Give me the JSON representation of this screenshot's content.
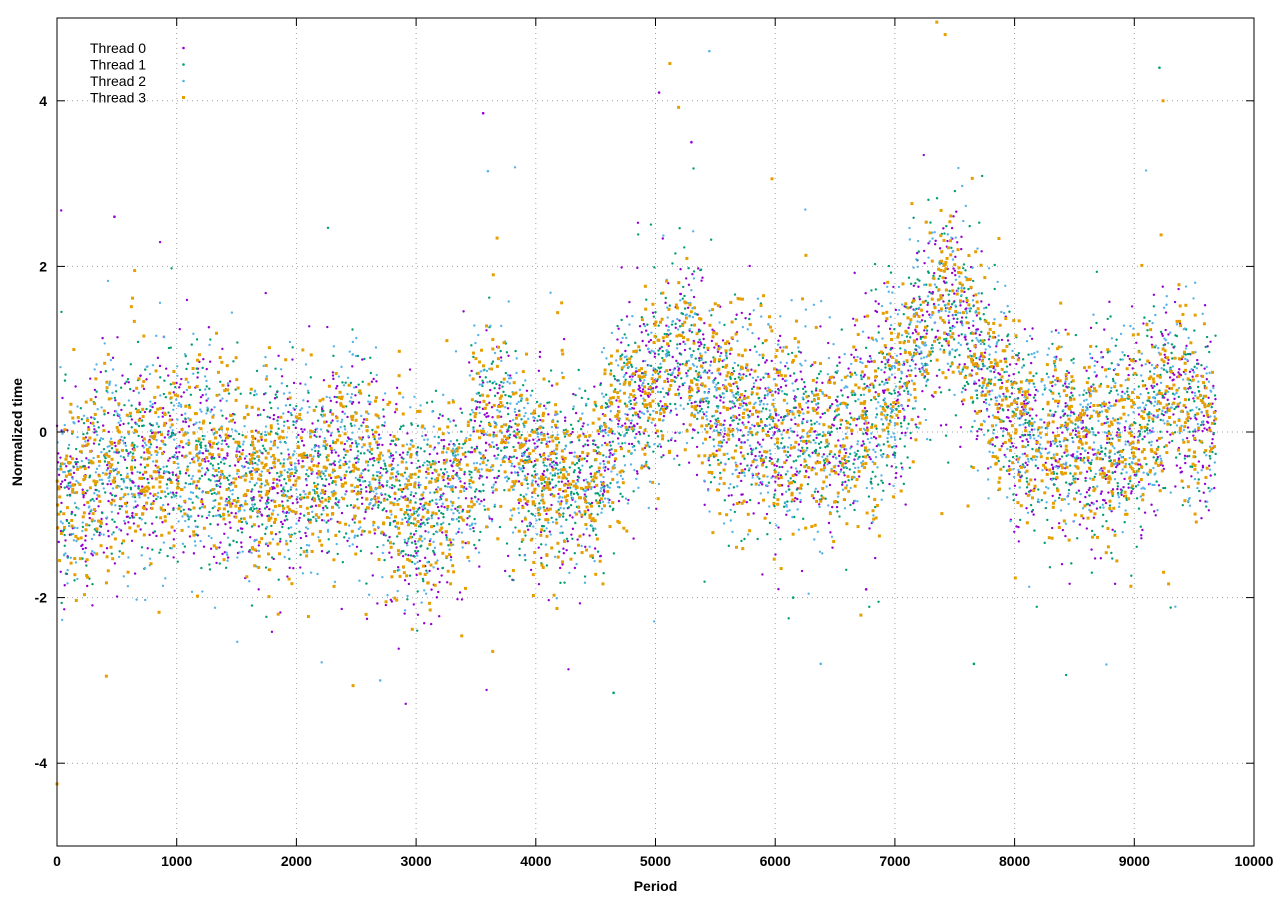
{
  "chart_data": {
    "type": "scatter",
    "title": "",
    "xlabel": "Period",
    "ylabel": "Normalized time",
    "xlim": [
      0,
      10000
    ],
    "ylim": [
      -5,
      5
    ],
    "xticks": [
      0,
      1000,
      2000,
      3000,
      4000,
      5000,
      6000,
      7000,
      8000,
      9000,
      10000
    ],
    "yticks": [
      -4,
      -2,
      0,
      2,
      4
    ],
    "xtick_labels": [
      "0",
      "1000",
      "2000",
      "3000",
      "4000",
      "5000",
      "6000",
      "7000",
      "8000",
      "9000",
      "10000"
    ],
    "ytick_labels": [
      "-4",
      "-2",
      "0",
      "2",
      "4"
    ],
    "grid": true,
    "legend_position": "top-left",
    "x_extent": [
      0,
      9680
    ],
    "trend": {
      "x": [
        0,
        500,
        1000,
        1500,
        2000,
        2500,
        3000,
        3400,
        3600,
        4000,
        4500,
        4700,
        5000,
        5200,
        5500,
        6000,
        6500,
        7000,
        7300,
        7500,
        7800,
        8000,
        8500,
        9000,
        9300,
        9680
      ],
      "y": [
        -0.8,
        -0.4,
        -0.3,
        -0.5,
        -0.5,
        -0.3,
        -0.9,
        -0.7,
        0.2,
        -0.5,
        -0.6,
        0.3,
        0.6,
        1.0,
        0.4,
        0.0,
        -0.1,
        0.5,
        1.4,
        1.6,
        0.6,
        0.1,
        -0.2,
        0.0,
        0.5,
        0.1
      ]
    },
    "series": [
      {
        "name": "Thread 0",
        "color": "#9400d3",
        "marker": "dot",
        "notable_points": [
          {
            "x": 3560,
            "y": 3.85
          },
          {
            "x": 5030,
            "y": 4.1
          },
          {
            "x": 480,
            "y": 2.6
          },
          {
            "x": 5300,
            "y": 3.5
          },
          {
            "x": 6760,
            "y": -1.9
          }
        ]
      },
      {
        "name": "Thread 1",
        "color": "#009e73",
        "marker": "dot",
        "notable_points": [
          {
            "x": 4650,
            "y": -3.15
          },
          {
            "x": 7660,
            "y": -2.8
          },
          {
            "x": 9210,
            "y": 4.4
          },
          {
            "x": 6150,
            "y": -2.0
          }
        ]
      },
      {
        "name": "Thread 2",
        "color": "#56b4e9",
        "marker": "dot",
        "notable_points": [
          {
            "x": 5450,
            "y": 4.6
          },
          {
            "x": 2700,
            "y": -3.0
          },
          {
            "x": 3600,
            "y": 3.15
          },
          {
            "x": 6380,
            "y": -2.8
          }
        ]
      },
      {
        "name": "Thread 3",
        "color": "#e69f00",
        "marker": "square",
        "notable_points": [
          {
            "x": 0,
            "y": -4.25
          },
          {
            "x": 7350,
            "y": 4.95
          },
          {
            "x": 7420,
            "y": 4.8
          },
          {
            "x": 5120,
            "y": 4.45
          },
          {
            "x": 9240,
            "y": 4.0
          },
          {
            "x": 3640,
            "y": -2.65
          }
        ]
      }
    ]
  }
}
